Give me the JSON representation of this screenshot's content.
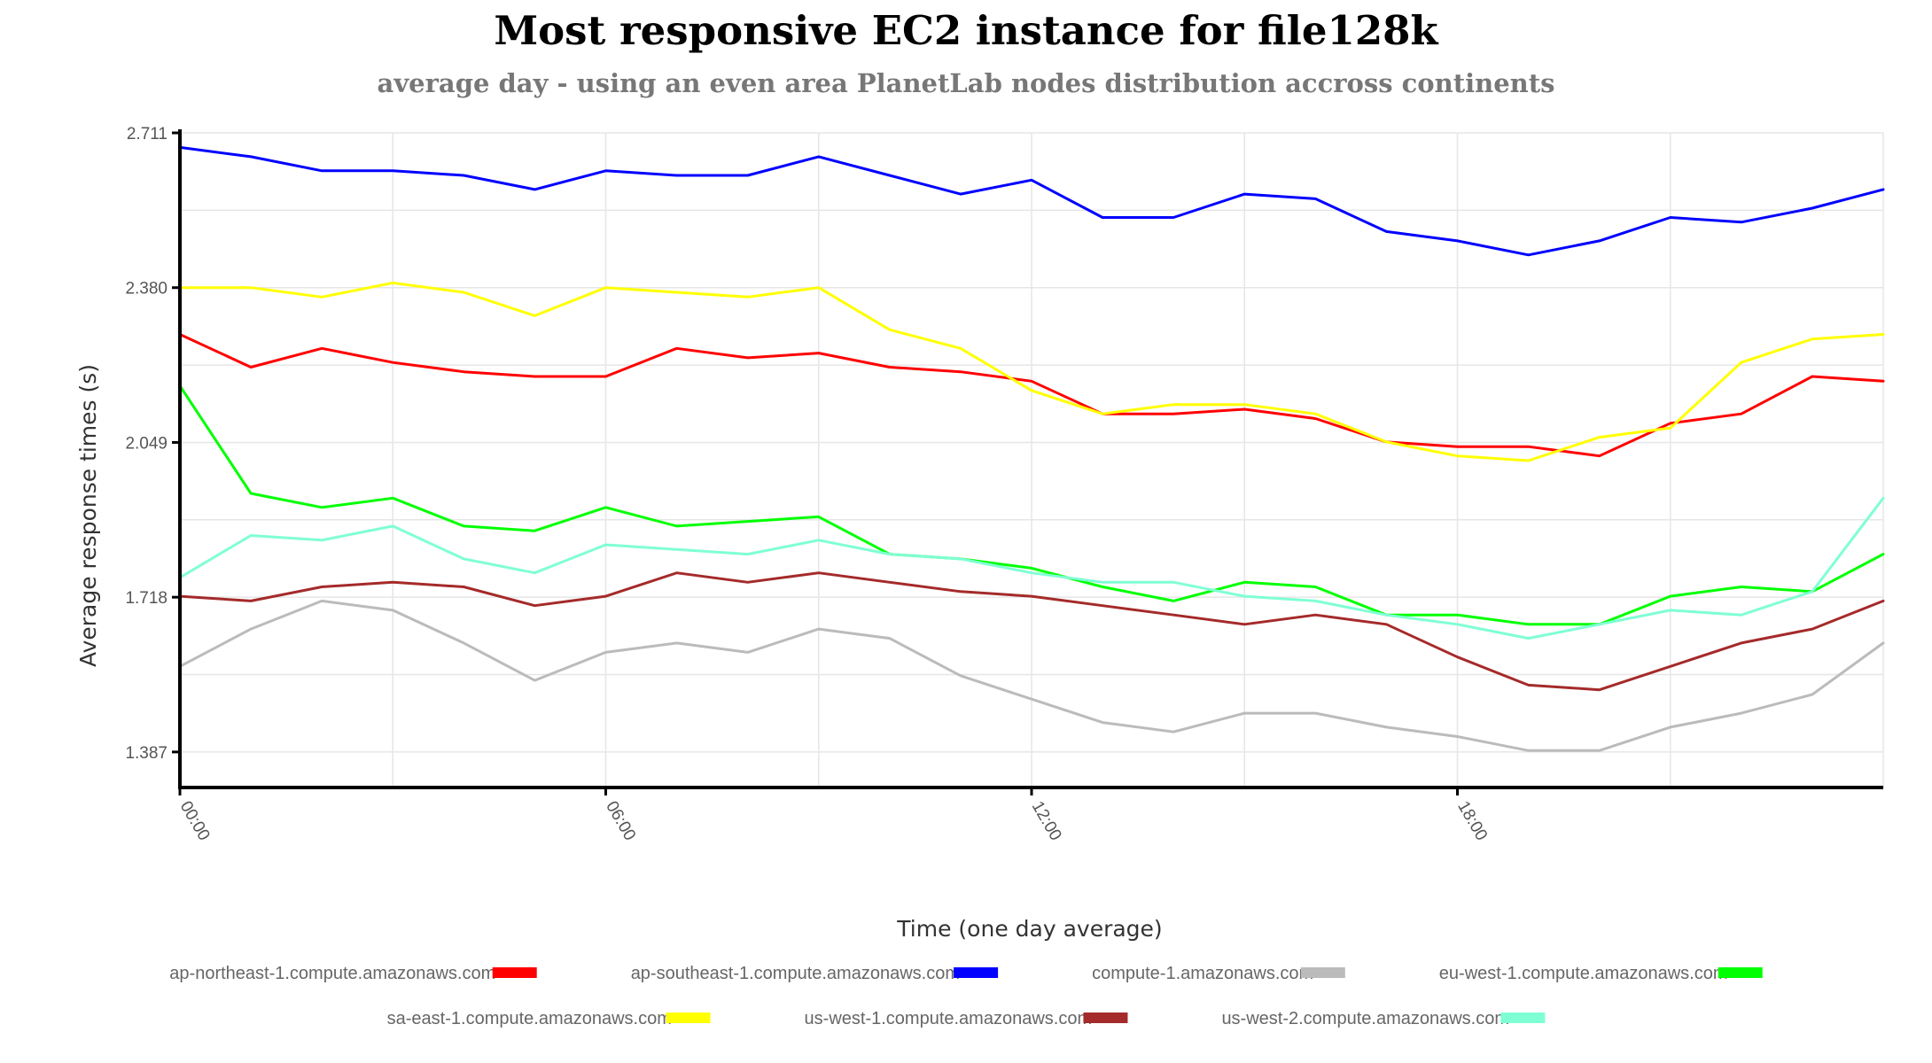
{
  "chart_data": {
    "type": "line",
    "title": "Most responsive EC2 instance for file128k",
    "subtitle": "average day - using an even area PlanetLab nodes distribution accross continents",
    "xlabel": "Time (one day average)",
    "ylabel": "Average response times (s)",
    "x_unit": "hours",
    "xlim": [
      0,
      24
    ],
    "ylim": [
      1.311,
      2.711
    ],
    "yticks": [
      1.387,
      1.718,
      2.049,
      2.38,
      2.711
    ],
    "ytick_labels": [
      "1.387",
      "1.718",
      "2.049",
      "2.380",
      "2.711"
    ],
    "xticks": [
      0,
      6,
      12,
      18
    ],
    "xtick_labels": [
      "00:00",
      "06:00",
      "12:00",
      "18:00"
    ],
    "x_minor_gridlines": [
      3,
      9,
      15,
      21
    ],
    "grid": true,
    "legend_position": "bottom",
    "x": [
      0,
      1,
      2,
      3,
      4,
      5,
      6,
      7,
      8,
      9,
      10,
      11,
      12,
      13,
      14,
      15,
      16,
      17,
      18,
      19,
      20,
      21,
      22,
      23,
      24
    ],
    "series": [
      {
        "name": "ap-northeast-1.compute.amazonaws.com",
        "color": "#ff0000",
        "values": [
          2.28,
          2.21,
          2.25,
          2.22,
          2.2,
          2.19,
          2.19,
          2.25,
          2.23,
          2.24,
          2.21,
          2.2,
          2.18,
          2.11,
          2.11,
          2.12,
          2.1,
          2.05,
          2.04,
          2.04,
          2.02,
          2.09,
          2.11,
          2.19,
          2.18
        ]
      },
      {
        "name": "ap-southeast-1.compute.amazonaws.com",
        "color": "#0000ff",
        "values": [
          2.68,
          2.66,
          2.63,
          2.63,
          2.62,
          2.59,
          2.63,
          2.62,
          2.62,
          2.66,
          2.62,
          2.58,
          2.61,
          2.53,
          2.53,
          2.58,
          2.57,
          2.5,
          2.48,
          2.45,
          2.48,
          2.53,
          2.52,
          2.55,
          2.59
        ]
      },
      {
        "name": "compute-1.amazonaws.com",
        "color": "#bbbbbb",
        "values": [
          1.57,
          1.65,
          1.71,
          1.69,
          1.62,
          1.54,
          1.6,
          1.62,
          1.6,
          1.65,
          1.63,
          1.55,
          1.5,
          1.45,
          1.43,
          1.47,
          1.47,
          1.44,
          1.42,
          1.39,
          1.39,
          1.44,
          1.47,
          1.51,
          1.62
        ]
      },
      {
        "name": "eu-west-1.compute.amazonaws.com",
        "color": "#00ff00",
        "values": [
          2.17,
          1.94,
          1.91,
          1.93,
          1.87,
          1.86,
          1.91,
          1.87,
          1.88,
          1.89,
          1.81,
          1.8,
          1.78,
          1.74,
          1.71,
          1.75,
          1.74,
          1.68,
          1.68,
          1.66,
          1.66,
          1.72,
          1.74,
          1.73,
          1.81
        ]
      },
      {
        "name": "sa-east-1.compute.amazonaws.com",
        "color": "#ffff00",
        "values": [
          2.38,
          2.38,
          2.36,
          2.39,
          2.37,
          2.32,
          2.38,
          2.37,
          2.36,
          2.38,
          2.29,
          2.25,
          2.16,
          2.11,
          2.13,
          2.13,
          2.11,
          2.05,
          2.02,
          2.01,
          2.06,
          2.08,
          2.22,
          2.27,
          2.28
        ]
      },
      {
        "name": "us-west-1.compute.amazonaws.com",
        "color": "#a52a2a",
        "values": [
          1.72,
          1.71,
          1.74,
          1.75,
          1.74,
          1.7,
          1.72,
          1.77,
          1.75,
          1.77,
          1.75,
          1.73,
          1.72,
          1.7,
          1.68,
          1.66,
          1.68,
          1.66,
          1.59,
          1.53,
          1.52,
          1.57,
          1.62,
          1.65,
          1.71
        ]
      },
      {
        "name": "us-west-2.compute.amazonaws.com",
        "color": "#7fffd4",
        "values": [
          1.76,
          1.85,
          1.84,
          1.87,
          1.8,
          1.77,
          1.83,
          1.82,
          1.81,
          1.84,
          1.81,
          1.8,
          1.77,
          1.75,
          1.75,
          1.72,
          1.71,
          1.68,
          1.66,
          1.63,
          1.66,
          1.69,
          1.68,
          1.73,
          1.93
        ]
      }
    ]
  }
}
